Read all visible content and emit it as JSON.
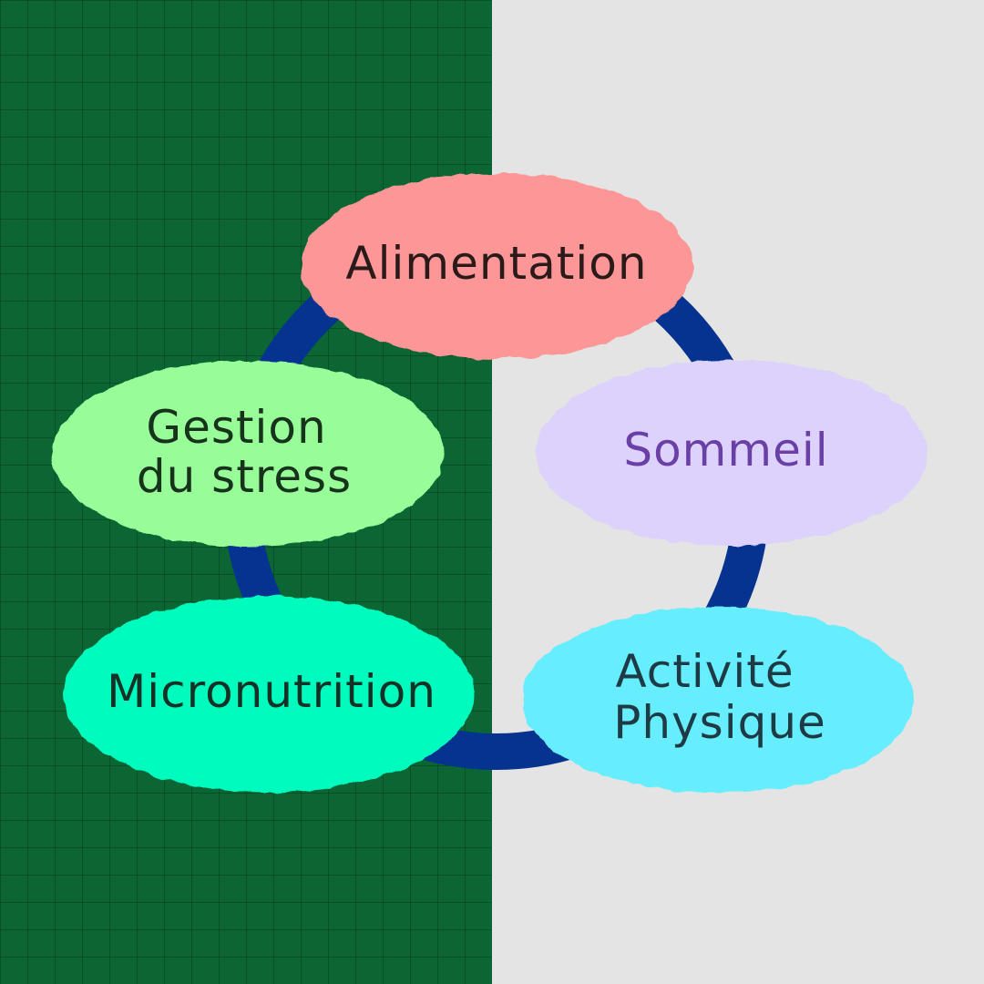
{
  "colors": {
    "left_background": "#0b6633",
    "right_background": "#e4e4e4",
    "ring": "#06338f"
  },
  "nodes": [
    {
      "id": "alimentation",
      "lines": [
        "Alimentation"
      ],
      "fill": "#fd9696",
      "text_color": "#2a1a1a"
    },
    {
      "id": "sommeil",
      "lines": [
        "Sommeil"
      ],
      "fill": "#dcd2fb",
      "text_color": "#6a3fa6"
    },
    {
      "id": "activite-physique",
      "lines": [
        "Activité",
        "Physique"
      ],
      "fill": "#66eefe",
      "text_color": "#1e3b45"
    },
    {
      "id": "micronutrition",
      "lines": [
        "Micronutrition"
      ],
      "fill": "#00fbbe",
      "text_color": "#143126"
    },
    {
      "id": "gestion-du-stress",
      "lines": [
        "Gestion",
        "du stress"
      ],
      "fill": "#98fd99",
      "text_color": "#17331c"
    }
  ]
}
